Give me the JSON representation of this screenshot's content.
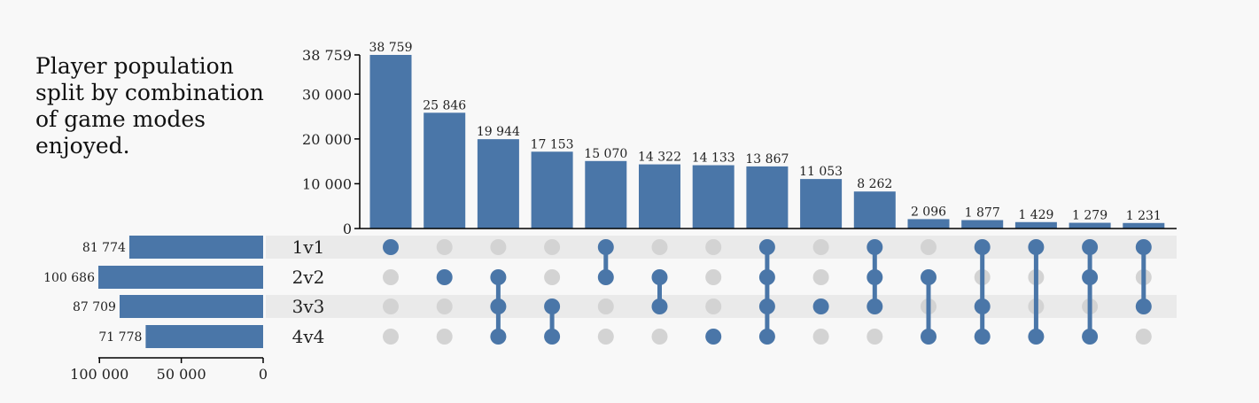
{
  "chart_data": {
    "type": "upset",
    "title_lines": [
      "Player population",
      "split by combination",
      "of game modes",
      "enjoyed."
    ],
    "sets": [
      {
        "name": "1v1",
        "size": 81774,
        "size_label": "81 774"
      },
      {
        "name": "2v2",
        "size": 100686,
        "size_label": "100 686"
      },
      {
        "name": "3v3",
        "size": 87709,
        "size_label": "87 709"
      },
      {
        "name": "4v4",
        "size": 71778,
        "size_label": "71 778"
      }
    ],
    "intersections": [
      {
        "value": 38759,
        "label": "38 759",
        "sets": [
          "1v1"
        ]
      },
      {
        "value": 25846,
        "label": "25 846",
        "sets": [
          "2v2"
        ]
      },
      {
        "value": 19944,
        "label": "19 944",
        "sets": [
          "2v2",
          "3v3",
          "4v4"
        ]
      },
      {
        "value": 17153,
        "label": "17 153",
        "sets": [
          "3v3",
          "4v4"
        ]
      },
      {
        "value": 15070,
        "label": "15 070",
        "sets": [
          "1v1",
          "2v2"
        ]
      },
      {
        "value": 14322,
        "label": "14 322",
        "sets": [
          "2v2",
          "3v3"
        ]
      },
      {
        "value": 14133,
        "label": "14 133",
        "sets": [
          "4v4"
        ]
      },
      {
        "value": 13867,
        "label": "13 867",
        "sets": [
          "1v1",
          "2v2",
          "3v3",
          "4v4"
        ]
      },
      {
        "value": 11053,
        "label": "11 053",
        "sets": [
          "3v3"
        ]
      },
      {
        "value": 8262,
        "label": "8 262",
        "sets": [
          "1v1",
          "2v2",
          "3v3"
        ]
      },
      {
        "value": 2096,
        "label": "2 096",
        "sets": [
          "2v2",
          "4v4"
        ]
      },
      {
        "value": 1877,
        "label": "1 877",
        "sets": [
          "1v1",
          "3v3",
          "4v4"
        ]
      },
      {
        "value": 1429,
        "label": "1 429",
        "sets": [
          "1v1",
          "4v4"
        ]
      },
      {
        "value": 1279,
        "label": "1 279",
        "sets": [
          "1v1",
          "2v2",
          "4v4"
        ]
      },
      {
        "value": 1231,
        "label": "1 231",
        "sets": [
          "1v1",
          "3v3"
        ]
      }
    ],
    "y_axis": {
      "range": [
        0,
        38759
      ],
      "ticks": [
        {
          "value": 0,
          "label": "0"
        },
        {
          "value": 10000,
          "label": "10 000"
        },
        {
          "value": 20000,
          "label": "20 000"
        },
        {
          "value": 30000,
          "label": "30 000"
        },
        {
          "value": 38759,
          "label": "38 759"
        }
      ]
    },
    "set_size_axis": {
      "range": [
        0,
        100686
      ],
      "ticks": [
        {
          "value": 100000,
          "label": "100 000"
        },
        {
          "value": 50000,
          "label": "50 000"
        },
        {
          "value": 0,
          "label": "0"
        }
      ]
    },
    "colors": {
      "bar": "#4a76a8",
      "dot_active": "#4a76a8",
      "dot_inactive": "#d3d3d3",
      "row_stripe": "#eaeaea",
      "background": "#f8f8f8"
    }
  }
}
